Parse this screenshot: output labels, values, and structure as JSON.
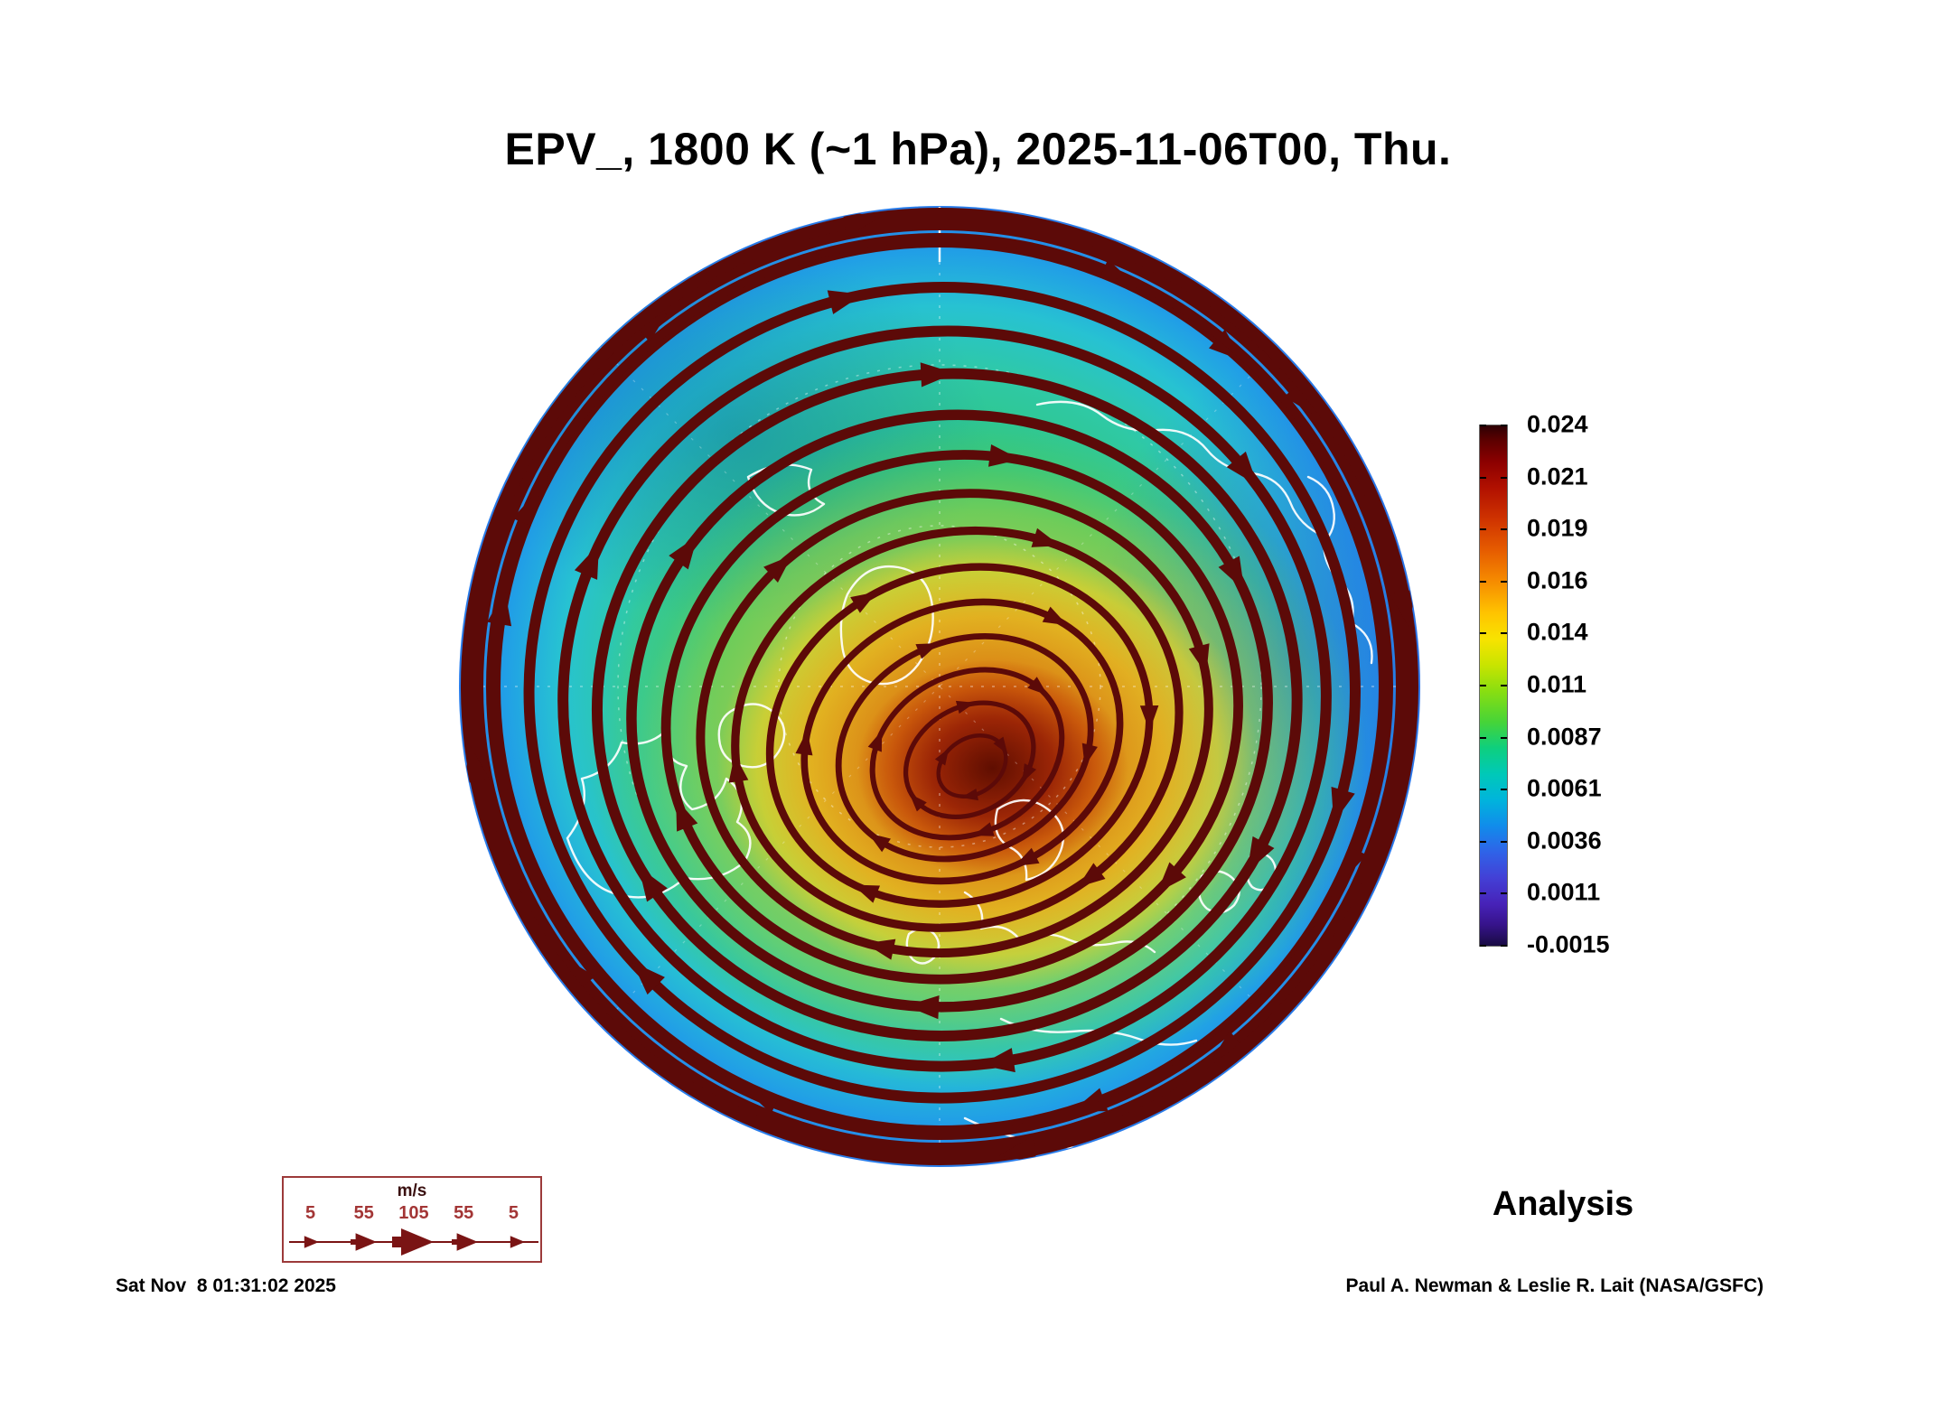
{
  "title": "EPV_, 1800 K (~1 hPa), 2025-11-06T00, Thu.",
  "colorbar": {
    "ticks": [
      "0.024",
      "0.021",
      "0.019",
      "0.016",
      "0.014",
      "0.011",
      "0.0087",
      "0.0061",
      "0.0036",
      "0.0011",
      "-0.0015"
    ]
  },
  "wind_legend": {
    "unit": "m/s",
    "ticks": [
      "5",
      "55",
      "105",
      "55",
      "5"
    ]
  },
  "annotations": {
    "analysis": "Analysis"
  },
  "footer": {
    "timestamp": "Sat Nov  8 01:31:02 2025",
    "credit": "Paul A. Newman & Leslie R. Lait (NASA/GSFC)"
  },
  "chart_data": {
    "type": "heatmap",
    "title": "EPV_, 1800 K (~1 hPa), 2025-11-06T00, Thu.",
    "field": "EPV_",
    "level": "1800 K (~1 hPa)",
    "valid_time": "2025-11-06T00, Thu.",
    "analysis_type": "Analysis",
    "projection": "north polar stereographic disc with streamlines overlay",
    "colorbar_ticks": [
      0.024,
      0.021,
      0.019,
      0.016,
      0.014,
      0.011,
      0.0087,
      0.0061,
      0.0036,
      0.0011,
      -0.0015
    ],
    "colorbar_range": [
      -0.0015,
      0.024
    ],
    "colormap_low_to_high": [
      "#190b43",
      "#36138a",
      "#4722b8",
      "#4340d6",
      "#2f63e8",
      "#118ceb",
      "#00b4dc",
      "#00c9b8",
      "#0ecf7e",
      "#46d438",
      "#8ade10",
      "#c9e400",
      "#f8e300",
      "#ffc300",
      "#f68c00",
      "#e65c00",
      "#cf3300",
      "#b11000",
      "#8c0000",
      "#5e0000",
      "#2d0004"
    ],
    "streamline_color": "#5c0a08",
    "wind_speed_legend_ms": [
      5,
      55,
      105,
      55,
      5
    ],
    "notable_features": "off-center polar vortex maximum (dark red core ~0.021-0.024) surrounded by yellow-orange ring, green mid-latitude band, blue/purple low EPV near disc edge, thick dark-red closed streamlines spiraling around vortex"
  }
}
